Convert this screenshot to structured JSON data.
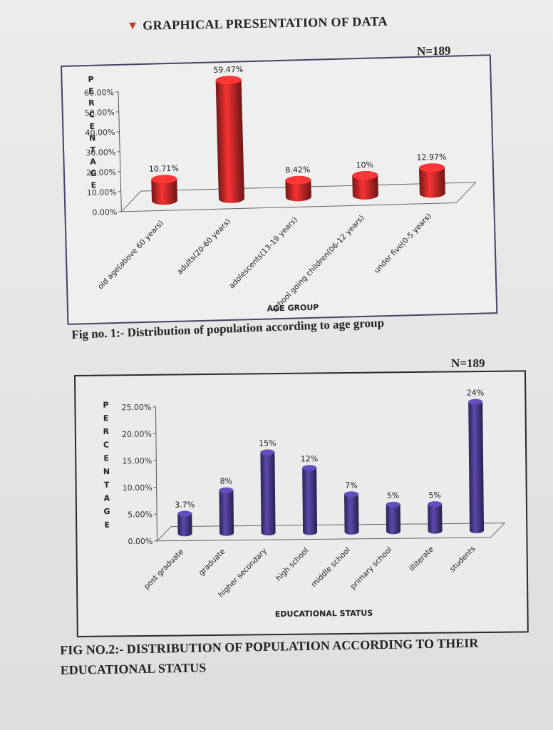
{
  "page": {
    "heading": "GRAPHICAL PRESENTATION OF DATA",
    "heading_icon": "bullet-icon"
  },
  "figures": [
    {
      "n_label": "N=189",
      "caption": "Fig no. 1:- Distribution of population according to age group"
    },
    {
      "n_label": "N=189",
      "caption": "FIG NO.2:- DISTRIBUTION OF POPULATION ACCORDING TO THEIR EDUCATIONAL STATUS"
    }
  ],
  "chart_data": [
    {
      "type": "bar",
      "title": "",
      "categories": [
        "old age(above 60 years)",
        "adults(20-60 years)",
        "adolescents(13-19 years)",
        "school going children(06-12 years)",
        "under five(0-5 years)"
      ],
      "values": [
        10.71,
        59.47,
        8.42,
        10,
        12.97
      ],
      "data_labels": [
        "10.71%",
        "59.47%",
        "8.42%",
        "10%",
        "12.97%"
      ],
      "xlabel": "AGE GROUP",
      "ylabel": "PERCENTAGE",
      "ylim": [
        0,
        60
      ],
      "yticks": [
        "0.00%",
        "10.00%",
        "20.00%",
        "30.00%",
        "40.00%",
        "50.00%",
        "60.00%"
      ],
      "bar_color": "#c62828",
      "grid": false,
      "style": "3d-cylinder"
    },
    {
      "type": "bar",
      "title": "",
      "categories": [
        "post graduate",
        "graduate",
        "higher secondary",
        "high school",
        "middle school",
        "primary school",
        "illiterate",
        "students"
      ],
      "values": [
        3.7,
        8,
        15,
        12,
        7,
        5,
        5,
        24
      ],
      "data_labels": [
        "3.7%",
        "8%",
        "15%",
        "12%",
        "7%",
        "5%",
        "5%",
        "24%"
      ],
      "xlabel": "EDUCATIONAL STATUS",
      "ylabel": "PERCENTAGE",
      "ylim": [
        0,
        25
      ],
      "yticks": [
        "0.00%",
        "5.00%",
        "10.00%",
        "15.00%",
        "20.00%",
        "25.00%"
      ],
      "bar_color": "#4a3a8c",
      "grid": false,
      "style": "3d-cylinder"
    }
  ]
}
